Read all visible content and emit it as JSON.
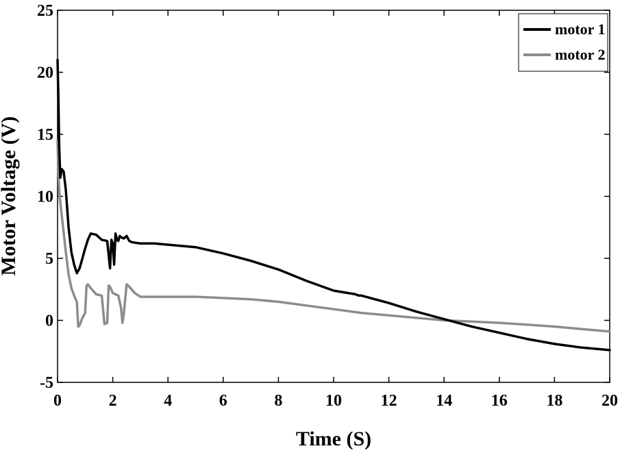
{
  "chart_data": {
    "type": "line",
    "title": "",
    "xlabel": "Time (S)",
    "ylabel": "Motor Voltage (V)",
    "xlim": [
      0,
      20
    ],
    "ylim": [
      -5,
      25
    ],
    "xticks": [
      0,
      2,
      4,
      6,
      8,
      10,
      12,
      14,
      16,
      18,
      20
    ],
    "yticks": [
      -5,
      0,
      5,
      10,
      15,
      20,
      25
    ],
    "grid": false,
    "legend_position": "top-right",
    "series": [
      {
        "name": "motor 1",
        "color": "#000000",
        "x": [
          0,
          0.03,
          0.06,
          0.1,
          0.15,
          0.22,
          0.3,
          0.4,
          0.5,
          0.6,
          0.7,
          0.8,
          0.9,
          1.0,
          1.1,
          1.2,
          1.4,
          1.6,
          1.8,
          1.9,
          1.95,
          2.0,
          2.05,
          2.1,
          2.15,
          2.2,
          2.25,
          2.3,
          2.4,
          2.5,
          2.6,
          2.7,
          3.0,
          3.5,
          4,
          5,
          6,
          7,
          8,
          9,
          10,
          10.8,
          10.9,
          11,
          12,
          13,
          14,
          15,
          16,
          17,
          18,
          19,
          20
        ],
        "y": [
          21,
          18,
          14,
          11.5,
          12.2,
          12.0,
          10.5,
          7.5,
          5.5,
          4.5,
          3.8,
          4.2,
          5.0,
          5.8,
          6.5,
          7.0,
          6.9,
          6.5,
          6.4,
          4.2,
          6.5,
          6.2,
          4.5,
          7.0,
          6.5,
          6.4,
          6.8,
          6.7,
          6.6,
          6.8,
          6.4,
          6.3,
          6.2,
          6.2,
          6.1,
          5.9,
          5.4,
          4.8,
          4.1,
          3.2,
          2.4,
          2.1,
          2.0,
          2.0,
          1.4,
          0.7,
          0.1,
          -0.5,
          -1.0,
          -1.5,
          -1.9,
          -2.2,
          -2.4
        ]
      },
      {
        "name": "motor 2",
        "color": "#8c8c8c",
        "x": [
          0,
          0.03,
          0.06,
          0.1,
          0.2,
          0.3,
          0.4,
          0.5,
          0.6,
          0.7,
          0.75,
          0.8,
          0.9,
          1.0,
          1.05,
          1.1,
          1.2,
          1.4,
          1.6,
          1.7,
          1.8,
          1.85,
          1.9,
          2.0,
          2.1,
          2.2,
          2.3,
          2.35,
          2.4,
          2.5,
          2.6,
          2.8,
          3.0,
          3.5,
          4,
          5,
          6,
          7,
          8,
          9,
          10,
          11,
          12,
          13,
          14,
          15,
          16,
          17,
          18,
          19,
          20
        ],
        "y": [
          14.5,
          12,
          10.5,
          9.5,
          7.5,
          5.5,
          3.7,
          2.6,
          2.0,
          1.5,
          -0.5,
          -0.4,
          0.2,
          0.6,
          2.8,
          2.9,
          2.6,
          2.1,
          2.0,
          -0.3,
          -0.2,
          2.8,
          2.7,
          2.2,
          2.1,
          2.0,
          1.0,
          -0.2,
          0.5,
          2.9,
          2.7,
          2.2,
          1.9,
          1.9,
          1.9,
          1.9,
          1.8,
          1.7,
          1.5,
          1.2,
          0.9,
          0.6,
          0.4,
          0.2,
          0.0,
          -0.1,
          -0.2,
          -0.35,
          -0.5,
          -0.7,
          -0.9
        ]
      }
    ]
  }
}
